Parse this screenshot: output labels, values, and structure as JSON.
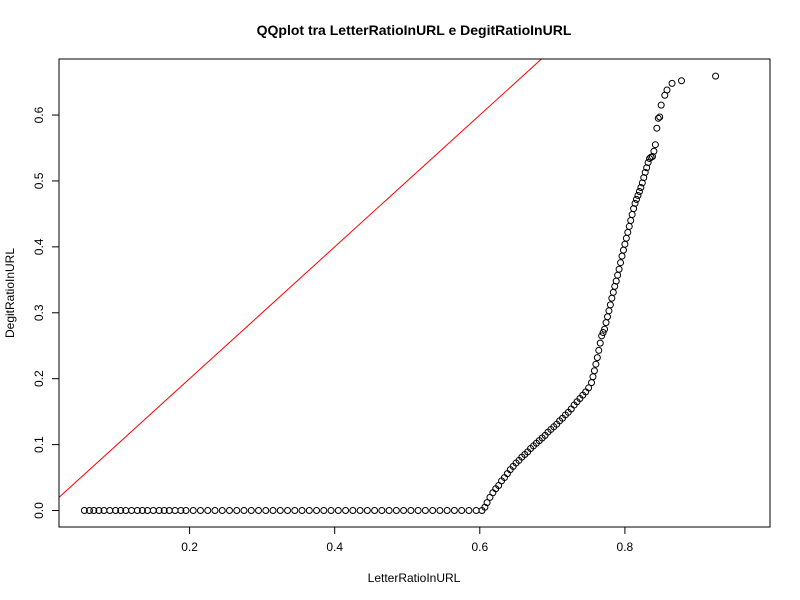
{
  "chart_data": {
    "type": "scatter",
    "title": "QQplot tra LetterRatioInURL e DegitRatioInURL",
    "xlabel": "LetterRatioInURL",
    "ylabel": "DegitRatioInURL",
    "xlim": [
      0.02,
      1.0
    ],
    "ylim": [
      -0.025,
      0.685
    ],
    "x_ticks": [
      0.2,
      0.4,
      0.6,
      0.8
    ],
    "x_tick_labels": [
      "0.2",
      "0.4",
      "0.6",
      "0.8"
    ],
    "y_ticks": [
      0.0,
      0.1,
      0.2,
      0.3,
      0.4,
      0.5,
      0.6
    ],
    "y_tick_labels": [
      "0.0",
      "0.1",
      "0.2",
      "0.3",
      "0.4",
      "0.5",
      "0.6"
    ],
    "grid": false,
    "point_color": "#000000",
    "reference_line": {
      "intercept": 0,
      "slope": 1,
      "color": "#ff0000"
    },
    "series": [
      {
        "points": [
          [
            0.055,
            0.0
          ],
          [
            0.062,
            0.0
          ],
          [
            0.068,
            0.0
          ],
          [
            0.075,
            0.0
          ],
          [
            0.082,
            0.0
          ],
          [
            0.09,
            0.0
          ],
          [
            0.098,
            0.0
          ],
          [
            0.105,
            0.0
          ],
          [
            0.112,
            0.0
          ],
          [
            0.12,
            0.0
          ],
          [
            0.128,
            0.0
          ],
          [
            0.135,
            0.0
          ],
          [
            0.142,
            0.0
          ],
          [
            0.15,
            0.0
          ],
          [
            0.158,
            0.0
          ],
          [
            0.165,
            0.0
          ],
          [
            0.172,
            0.0
          ],
          [
            0.18,
            0.0
          ],
          [
            0.188,
            0.0
          ],
          [
            0.195,
            0.0
          ],
          [
            0.205,
            0.0
          ],
          [
            0.215,
            0.0
          ],
          [
            0.225,
            0.0
          ],
          [
            0.235,
            0.0
          ],
          [
            0.245,
            0.0
          ],
          [
            0.255,
            0.0
          ],
          [
            0.265,
            0.0
          ],
          [
            0.275,
            0.0
          ],
          [
            0.285,
            0.0
          ],
          [
            0.295,
            0.0
          ],
          [
            0.305,
            0.0
          ],
          [
            0.315,
            0.0
          ],
          [
            0.325,
            0.0
          ],
          [
            0.335,
            0.0
          ],
          [
            0.345,
            0.0
          ],
          [
            0.355,
            0.0
          ],
          [
            0.365,
            0.0
          ],
          [
            0.375,
            0.0
          ],
          [
            0.385,
            0.0
          ],
          [
            0.395,
            0.0
          ],
          [
            0.405,
            0.0
          ],
          [
            0.415,
            0.0
          ],
          [
            0.425,
            0.0
          ],
          [
            0.435,
            0.0
          ],
          [
            0.445,
            0.0
          ],
          [
            0.455,
            0.0
          ],
          [
            0.465,
            0.0
          ],
          [
            0.475,
            0.0
          ],
          [
            0.485,
            0.0
          ],
          [
            0.495,
            0.0
          ],
          [
            0.505,
            0.0
          ],
          [
            0.515,
            0.0
          ],
          [
            0.525,
            0.0
          ],
          [
            0.535,
            0.0
          ],
          [
            0.545,
            0.0
          ],
          [
            0.555,
            0.0
          ],
          [
            0.565,
            0.0
          ],
          [
            0.575,
            0.0
          ],
          [
            0.585,
            0.0
          ],
          [
            0.595,
            0.0
          ],
          [
            0.603,
            0.0
          ],
          [
            0.607,
            0.005
          ],
          [
            0.61,
            0.012
          ],
          [
            0.614,
            0.02
          ],
          [
            0.618,
            0.027
          ],
          [
            0.622,
            0.033
          ],
          [
            0.626,
            0.038
          ],
          [
            0.63,
            0.045
          ],
          [
            0.634,
            0.05
          ],
          [
            0.638,
            0.056
          ],
          [
            0.642,
            0.062
          ],
          [
            0.646,
            0.067
          ],
          [
            0.65,
            0.072
          ],
          [
            0.654,
            0.076
          ],
          [
            0.658,
            0.081
          ],
          [
            0.662,
            0.085
          ],
          [
            0.666,
            0.089
          ],
          [
            0.67,
            0.094
          ],
          [
            0.674,
            0.098
          ],
          [
            0.678,
            0.102
          ],
          [
            0.682,
            0.106
          ],
          [
            0.686,
            0.11
          ],
          [
            0.69,
            0.114
          ],
          [
            0.694,
            0.119
          ],
          [
            0.698,
            0.123
          ],
          [
            0.702,
            0.127
          ],
          [
            0.706,
            0.131
          ],
          [
            0.71,
            0.136
          ],
          [
            0.714,
            0.14
          ],
          [
            0.718,
            0.145
          ],
          [
            0.722,
            0.149
          ],
          [
            0.726,
            0.154
          ],
          [
            0.73,
            0.16
          ],
          [
            0.734,
            0.165
          ],
          [
            0.738,
            0.17
          ],
          [
            0.742,
            0.175
          ],
          [
            0.746,
            0.18
          ],
          [
            0.75,
            0.186
          ],
          [
            0.754,
            0.194
          ],
          [
            0.756,
            0.203
          ],
          [
            0.758,
            0.212
          ],
          [
            0.76,
            0.222
          ],
          [
            0.762,
            0.232
          ],
          [
            0.764,
            0.243
          ],
          [
            0.766,
            0.254
          ],
          [
            0.768,
            0.265
          ],
          [
            0.77,
            0.27
          ],
          [
            0.772,
            0.275
          ],
          [
            0.774,
            0.285
          ],
          [
            0.776,
            0.294
          ],
          [
            0.778,
            0.303
          ],
          [
            0.78,
            0.312
          ],
          [
            0.782,
            0.322
          ],
          [
            0.784,
            0.331
          ],
          [
            0.786,
            0.34
          ],
          [
            0.788,
            0.348
          ],
          [
            0.79,
            0.357
          ],
          [
            0.792,
            0.366
          ],
          [
            0.794,
            0.376
          ],
          [
            0.796,
            0.386
          ],
          [
            0.798,
            0.395
          ],
          [
            0.8,
            0.404
          ],
          [
            0.802,
            0.413
          ],
          [
            0.804,
            0.422
          ],
          [
            0.806,
            0.431
          ],
          [
            0.808,
            0.44
          ],
          [
            0.81,
            0.449
          ],
          [
            0.812,
            0.458
          ],
          [
            0.814,
            0.466
          ],
          [
            0.816,
            0.472
          ],
          [
            0.818,
            0.478
          ],
          [
            0.82,
            0.484
          ],
          [
            0.822,
            0.49
          ],
          [
            0.824,
            0.497
          ],
          [
            0.826,
            0.505
          ],
          [
            0.828,
            0.513
          ],
          [
            0.83,
            0.52
          ],
          [
            0.832,
            0.528
          ],
          [
            0.834,
            0.534
          ],
          [
            0.836,
            0.536
          ],
          [
            0.838,
            0.537
          ],
          [
            0.84,
            0.545
          ],
          [
            0.842,
            0.555
          ],
          [
            0.844,
            0.58
          ],
          [
            0.846,
            0.595
          ],
          [
            0.848,
            0.597
          ],
          [
            0.85,
            0.615
          ],
          [
            0.855,
            0.63
          ],
          [
            0.858,
            0.638
          ],
          [
            0.865,
            0.648
          ],
          [
            0.878,
            0.652
          ],
          [
            0.925,
            0.659
          ]
        ]
      }
    ]
  }
}
